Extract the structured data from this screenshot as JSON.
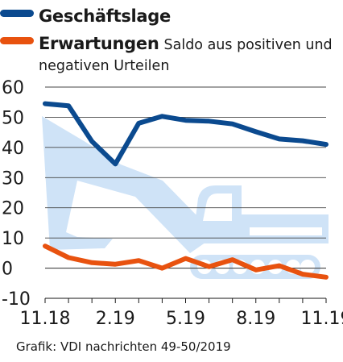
{
  "legend": {
    "series1_name": "Geschäftslage",
    "series2_name": "Erwartungen",
    "note_line1": "Saldo aus positiven und",
    "note_line2": "negativen Urteilen"
  },
  "footer": "Grafik: VDI nachrichten 49-50/2019",
  "chart_data": {
    "type": "line",
    "x": [
      "11.18",
      "12.18",
      "1.19",
      "2.19",
      "3.19",
      "4.19",
      "5.19",
      "6.19",
      "7.19",
      "8.19",
      "9.19",
      "10.19",
      "11.19"
    ],
    "x_tick_labels": [
      "11.18",
      "2.19",
      "5.19",
      "8.19",
      "11.19"
    ],
    "y_tick_labels": [
      "60",
      "50",
      "40",
      "30",
      "20",
      "10",
      "0",
      "-10"
    ],
    "ylim": [
      -10,
      60
    ],
    "grid": true,
    "series": [
      {
        "name": "Geschäftslage",
        "color": "#0b4a8f",
        "values": [
          54.5,
          53.8,
          42,
          34.5,
          48,
          50.3,
          49,
          48.7,
          47.8,
          45.2,
          42.8,
          42.2,
          41
        ]
      },
      {
        "name": "Erwartungen",
        "color": "#e8520f",
        "values": [
          7.3,
          3.5,
          1.8,
          1.3,
          2.5,
          0.0,
          3.2,
          0.5,
          2.8,
          -0.6,
          0.8,
          -2,
          -3
        ]
      }
    ]
  },
  "colors": {
    "background_illustration": "#cfe3f7",
    "grid": "#444444"
  }
}
